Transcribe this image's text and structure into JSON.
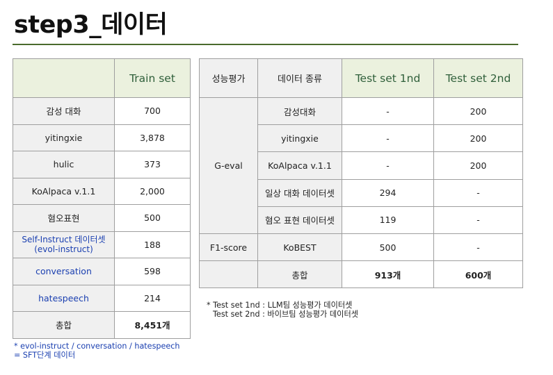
{
  "title": "step3_데이터",
  "train_table": {
    "header": [
      "",
      "Train set"
    ],
    "rows": [
      {
        "name": "감성 대화",
        "value": "700"
      },
      {
        "name": "yitingxie",
        "value": "3,878"
      },
      {
        "name": "hulic",
        "value": "373"
      },
      {
        "name": "KoAlpaca v.1.1",
        "value": "2,000"
      },
      {
        "name": "혐오표현",
        "value": "500"
      },
      {
        "name_line1": "Self-Instruct  데이터셋",
        "name_line2": "(evol-instruct)",
        "value": "188"
      },
      {
        "name": "conversation",
        "value": "598"
      },
      {
        "name": "hatespeech",
        "value": "214"
      }
    ],
    "total": {
      "name": "총합",
      "value": "8,451개"
    }
  },
  "test_table": {
    "headers": [
      "성능평가",
      "데이터 종류",
      "Test set 1nd",
      "Test set 2nd"
    ],
    "geval_label": "G-eval",
    "f1_label": "F1-score",
    "rows": [
      {
        "type": "감성대화",
        "t1": "-",
        "t2": "200"
      },
      {
        "type": "yitingxie",
        "t1": "-",
        "t2": "200"
      },
      {
        "type": "KoAlpaca v.1.1",
        "t1": "-",
        "t2": "200"
      },
      {
        "type": "일상 대화 데이터셋",
        "t1": "294",
        "t2": "-"
      },
      {
        "type": "혐오 표현 데이터셋",
        "t1": "119",
        "t2": "-"
      },
      {
        "type": "KoBEST",
        "t1": "500",
        "t2": "-"
      }
    ],
    "total": {
      "label": "총합",
      "t1": "913개",
      "t2": "600개"
    }
  },
  "notes": {
    "left_line1": "* evol-instruct / conversation / hatespeech",
    "left_line2": "= SFT단계 데이터",
    "right_line1": "* Test set 1nd : LLM팀 성능평가 데이터셋",
    "right_line2": "Test set 2nd : 바이브팀 성능평가 데이터셋"
  }
}
